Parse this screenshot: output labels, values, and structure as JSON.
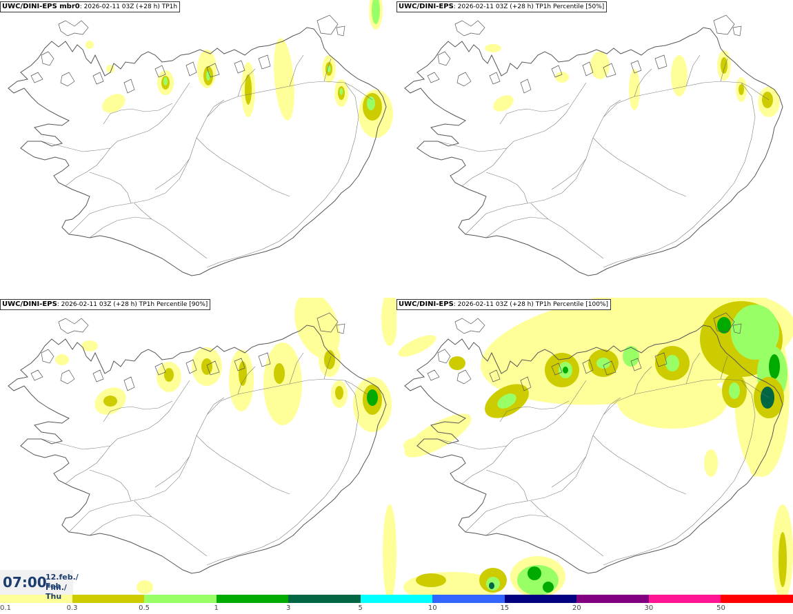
{
  "panels": [
    {
      "model": "UWC/DINI-EPS mbr0",
      "info": ": 2026-02-11 03Z (+28 h)",
      "field": "TP1h"
    },
    {
      "model": "UWC/DINI-EPS",
      "info": ": 2026-02-11 03Z (+28 h)",
      "field": "TP1h Percentile [50%]"
    },
    {
      "model": "UWC/DINI-EPS",
      "info": ": 2026-02-11 03Z (+28 h)",
      "field": "TP1h Percentile [90%]"
    },
    {
      "model": "UWC/DINI-EPS",
      "info": ": 2026-02-11 03Z (+28 h)",
      "field": "TP1h Percentile [100%]"
    }
  ],
  "time": {
    "clock": "07:00",
    "date_line1": "12.feb./ Feb",
    "date_line2": "Fim./ Thu"
  },
  "colorbar": {
    "labels": [
      "0.1",
      "0.3",
      "0.5",
      "1",
      "3",
      "5",
      "10",
      "15",
      "20",
      "30",
      "50"
    ],
    "colors": [
      "#ffff99",
      "#cccc00",
      "#99ff66",
      "#00aa00",
      "#006644",
      "#00ffff",
      "#3366ff",
      "#000080",
      "#800080",
      "#ff1493",
      "#ff0000"
    ]
  },
  "colors": {
    "coast": "#555555",
    "roads": "#666666",
    "level1": "#ffff99",
    "level2": "#cccc00",
    "level3": "#99ff66",
    "level4": "#00aa00",
    "level5": "#006644"
  }
}
